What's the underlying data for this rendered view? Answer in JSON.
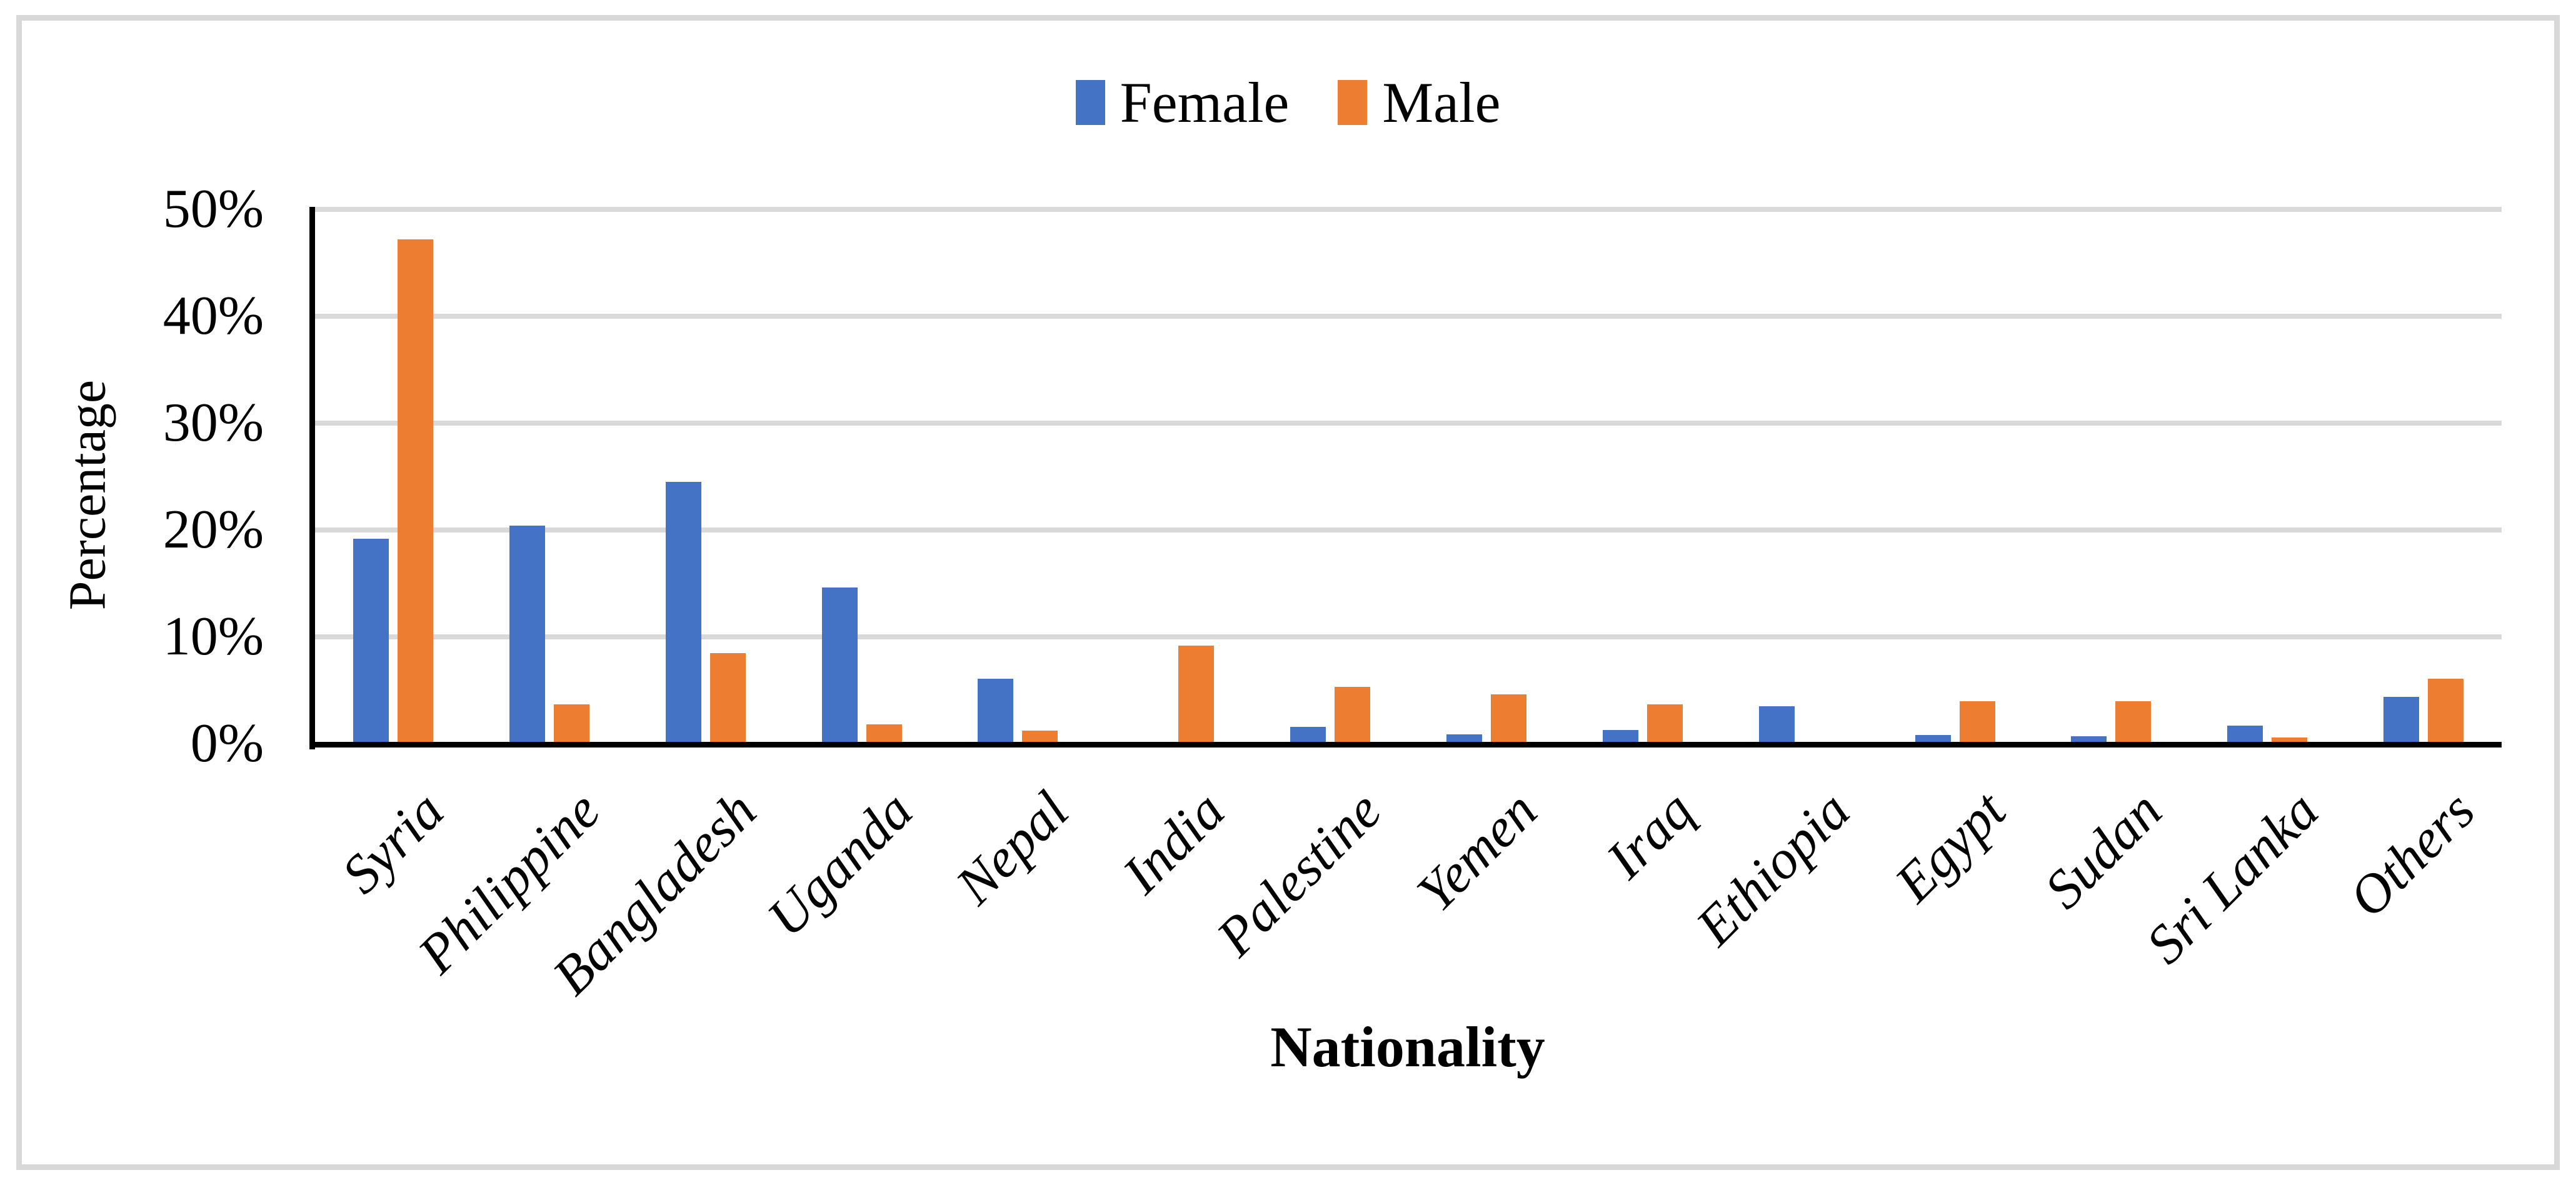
{
  "chart_data": {
    "type": "bar",
    "title": "",
    "xlabel": "Nationality",
    "ylabel": "Percentage",
    "categories": [
      "Syria",
      "Philippine",
      "Bangladesh",
      "Uganda",
      "Nepal",
      "India",
      "Palestine",
      "Yemen",
      "Iraq",
      "Ethiopia",
      "Egypt",
      "Sudan",
      "Sri Lanka",
      "Others"
    ],
    "series": [
      {
        "name": "Female",
        "color": "#4472C4",
        "values": [
          19.2,
          20.4,
          24.5,
          14.6,
          6.1,
          0,
          1.6,
          0.9,
          1.3,
          3.5,
          0.8,
          0.7,
          1.7,
          4.4
        ]
      },
      {
        "name": "Male",
        "color": "#ED7D31",
        "values": [
          47.2,
          3.7,
          8.5,
          1.8,
          1.2,
          9.2,
          5.3,
          4.6,
          3.7,
          0,
          4.0,
          4.0,
          0.6,
          6.1
        ]
      }
    ],
    "ylim": [
      0,
      50
    ],
    "y_ticks": [
      "0%",
      "10%",
      "20%",
      "30%",
      "40%",
      "50%"
    ],
    "grid": "horizontal",
    "gridline_color": "#D9D9D9",
    "legend_position": "top-center"
  }
}
